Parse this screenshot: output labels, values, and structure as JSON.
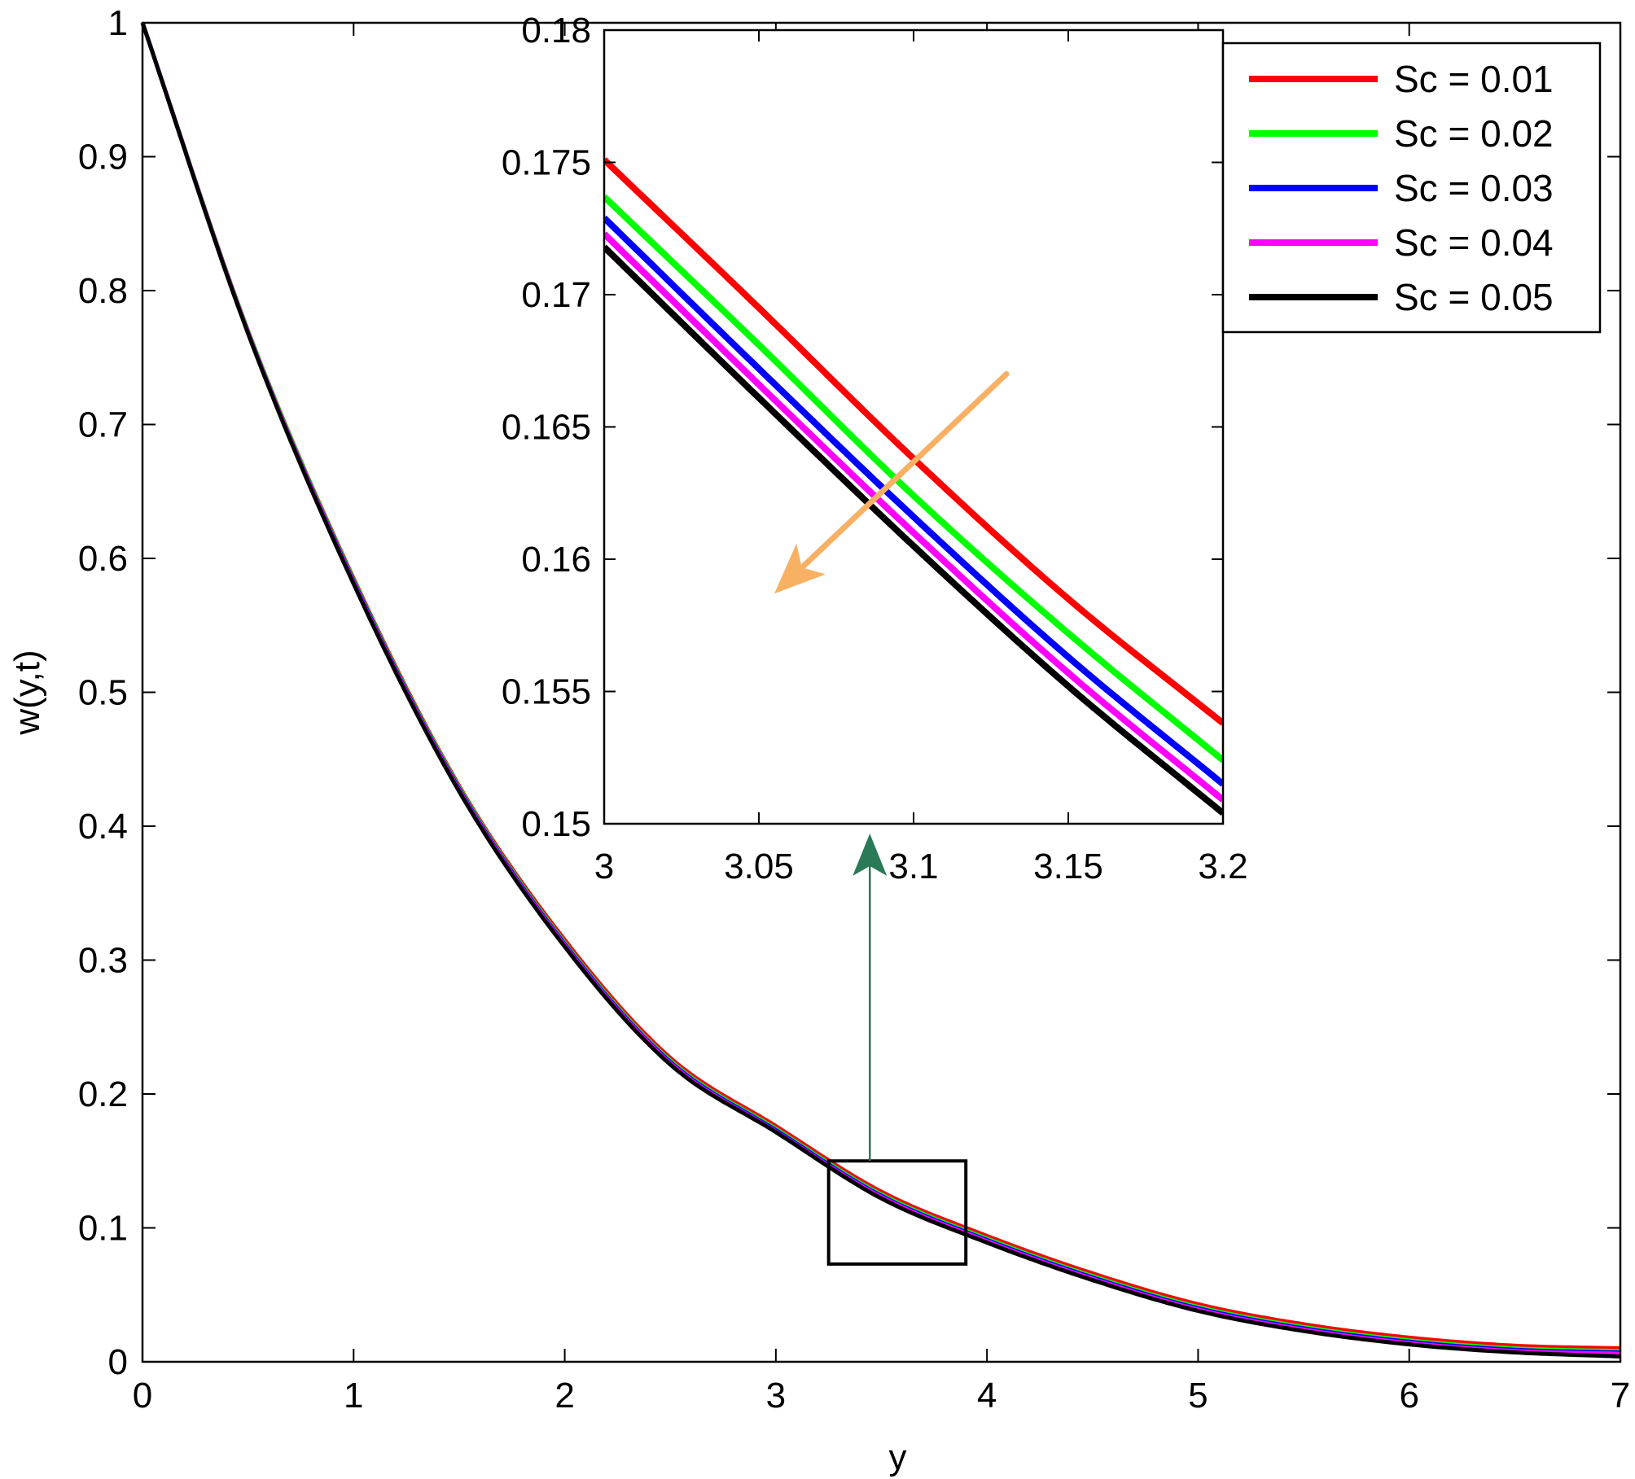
{
  "chart_data": [
    {
      "type": "line",
      "panel": "main",
      "xlabel": "y",
      "ylabel": "w(y,t)",
      "xlim": [
        0,
        7
      ],
      "ylim": [
        0,
        1
      ],
      "xticks": [
        0,
        1,
        2,
        3,
        4,
        5,
        6,
        7
      ],
      "xtick_labels": [
        "0",
        "1",
        "2",
        "3",
        "4",
        "5",
        "6",
        "7"
      ],
      "yticks": [
        0,
        0.1,
        0.2,
        0.3,
        0.4,
        0.5,
        0.6,
        0.7,
        0.8,
        0.9,
        1
      ],
      "ytick_labels": [
        "0",
        "0.1",
        "0.2",
        "0.3",
        "0.4",
        "0.5",
        "0.6",
        "0.7",
        "0.8",
        "0.9",
        "1"
      ],
      "grid": false,
      "legend": "top-right",
      "x": [
        0,
        0.5,
        1,
        1.5,
        2,
        2.5,
        3,
        3.5,
        4,
        4.5,
        5,
        5.5,
        6,
        6.5,
        7
      ],
      "series": [
        {
          "name": "Sc = 0.01",
          "color": "#ff0000",
          "values": [
            1.0,
            0.77,
            0.585,
            0.43,
            0.315,
            0.227,
            0.176,
            0.127,
            0.094,
            0.066,
            0.043,
            0.028,
            0.018,
            0.012,
            0.01
          ]
        },
        {
          "name": "Sc = 0.02",
          "color": "#00ff00",
          "values": [
            1.0,
            0.77,
            0.584,
            0.429,
            0.313,
            0.225,
            0.174,
            0.125,
            0.092,
            0.064,
            0.041,
            0.026,
            0.016,
            0.01,
            0.008
          ]
        },
        {
          "name": "Sc = 0.03",
          "color": "#0000ff",
          "values": [
            1.0,
            0.769,
            0.583,
            0.428,
            0.312,
            0.224,
            0.173,
            0.124,
            0.091,
            0.063,
            0.04,
            0.025,
            0.015,
            0.009,
            0.007
          ]
        },
        {
          "name": "Sc = 0.04",
          "color": "#ff00ff",
          "values": [
            1.0,
            0.769,
            0.582,
            0.427,
            0.311,
            0.223,
            0.172,
            0.123,
            0.09,
            0.062,
            0.039,
            0.024,
            0.014,
            0.008,
            0.006
          ]
        },
        {
          "name": "Sc = 0.05",
          "color": "#000000",
          "values": [
            1.0,
            0.768,
            0.581,
            0.426,
            0.31,
            0.222,
            0.1715,
            0.122,
            0.089,
            0.061,
            0.038,
            0.023,
            0.013,
            0.007,
            0.004
          ]
        }
      ],
      "zoom_box": {
        "xlim": [
          3.25,
          3.9
        ],
        "ylim": [
          0.073,
          0.15
        ]
      }
    },
    {
      "type": "line",
      "panel": "inset",
      "xlim": [
        3,
        3.2
      ],
      "ylim": [
        0.15,
        0.18
      ],
      "xticks": [
        3,
        3.05,
        3.1,
        3.15,
        3.2
      ],
      "xtick_labels": [
        "3",
        "3.05",
        "3.1",
        "3.15",
        "3.2"
      ],
      "yticks": [
        0.15,
        0.155,
        0.16,
        0.165,
        0.17,
        0.175,
        0.18
      ],
      "ytick_labels": [
        "0.15",
        "0.155",
        "0.16",
        "0.165",
        "0.17",
        "0.175",
        "0.18"
      ],
      "grid": false,
      "x": [
        3,
        3.05,
        3.1,
        3.15,
        3.2
      ],
      "series": [
        {
          "name": "Sc = 0.01",
          "color": "#ff0000",
          "values": [
            0.1751,
            0.1695,
            0.1638,
            0.1585,
            0.1538
          ]
        },
        {
          "name": "Sc = 0.02",
          "color": "#00ff00",
          "values": [
            0.1737,
            0.1681,
            0.1624,
            0.1572,
            0.1524
          ]
        },
        {
          "name": "Sc = 0.03",
          "color": "#0000ff",
          "values": [
            0.1729,
            0.1672,
            0.1616,
            0.1563,
            0.1515
          ]
        },
        {
          "name": "Sc = 0.04",
          "color": "#ff00ff",
          "values": [
            0.1723,
            0.1666,
            0.161,
            0.1557,
            0.1509
          ]
        },
        {
          "name": "Sc = 0.05",
          "color": "#000000",
          "values": [
            0.1718,
            0.1661,
            0.1605,
            0.1552,
            0.1504
          ]
        }
      ],
      "annotation_arrow": {
        "from": [
          3.13,
          0.167
        ],
        "to": [
          3.055,
          0.1587
        ],
        "color": "#f8b063"
      }
    }
  ],
  "connector_arrow_color": "#2a7a58"
}
